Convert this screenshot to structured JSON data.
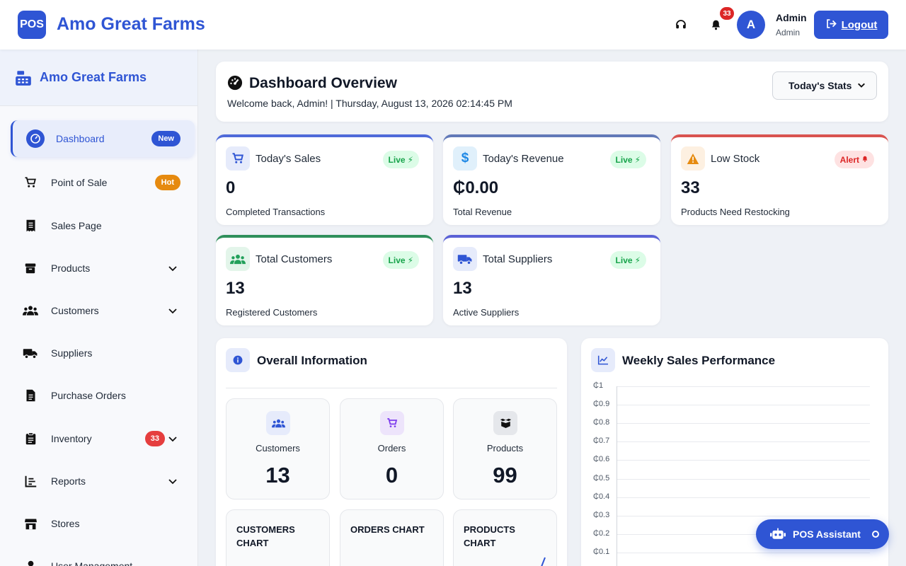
{
  "topbar": {
    "logo_text": "POS",
    "brand": "Amo Great Farms",
    "notification_count": "33",
    "avatar_initial": "A",
    "user_name": "Admin",
    "user_role": "Admin",
    "logout_label": "Logout"
  },
  "sidebar": {
    "brand": "Amo Great Farms",
    "items": [
      {
        "label": "Dashboard",
        "badge": "New",
        "icon": "dashboard-gauge-icon"
      },
      {
        "label": "Point of Sale",
        "badge": "Hot",
        "icon": "cart-icon"
      },
      {
        "label": "Sales Page",
        "icon": "receipt-icon"
      },
      {
        "label": "Products",
        "icon": "box-icon",
        "expandable": true
      },
      {
        "label": "Customers",
        "icon": "users-icon",
        "expandable": true
      },
      {
        "label": "Suppliers",
        "icon": "truck-icon"
      },
      {
        "label": "Purchase Orders",
        "icon": "document-icon"
      },
      {
        "label": "Inventory",
        "badge": "33",
        "icon": "clipboard-icon",
        "expandable": true
      },
      {
        "label": "Reports",
        "icon": "bar-chart-icon",
        "expandable": true
      },
      {
        "label": "Stores",
        "icon": "store-icon"
      },
      {
        "label": "User Management",
        "icon": "user-icon"
      }
    ]
  },
  "overview": {
    "title": "Dashboard Overview",
    "subtitle": "Welcome back, Admin! | Thursday, August 13, 2026 02:14:45 PM",
    "filter_selected": "Today's Stats"
  },
  "stats": [
    {
      "title": "Today's Sales",
      "badge": "Live",
      "value": "0",
      "sub": "Completed Transactions",
      "color": "#4f6ad9"
    },
    {
      "title": "Today's Revenue",
      "badge": "Live",
      "value": "₵0.00",
      "sub": "Total Revenue",
      "color": "#6279b8"
    },
    {
      "title": "Low Stock",
      "badge": "Alert",
      "value": "33",
      "sub": "Products Need Restocking",
      "color": "#d9534f"
    },
    {
      "title": "Total Customers",
      "badge": "Live",
      "value": "13",
      "sub": "Registered Customers",
      "color": "#2f8f5b"
    },
    {
      "title": "Total Suppliers",
      "badge": "Live",
      "value": "13",
      "sub": "Active Suppliers",
      "color": "#5b62d6"
    }
  ],
  "overall": {
    "title": "Overall Information",
    "cards": [
      {
        "label": "Customers",
        "value": "13"
      },
      {
        "label": "Orders",
        "value": "0"
      },
      {
        "label": "Products",
        "value": "99"
      }
    ],
    "charts": [
      "CUSTOMERS CHART",
      "ORDERS CHART",
      "PRODUCTS CHART"
    ]
  },
  "weekly": {
    "title": "Weekly Sales Performance"
  },
  "chart_data": {
    "type": "line",
    "title": "Weekly Sales Performance",
    "y_ticks": [
      "₵1",
      "₵0.9",
      "₵0.8",
      "₵0.7",
      "₵0.6",
      "₵0.5",
      "₵0.4",
      "₵0.3",
      "₵0.2",
      "₵0.1"
    ],
    "ylim": [
      0,
      1
    ],
    "series": [],
    "grid": true
  },
  "assistant": {
    "label": "POS Assistant"
  },
  "colors": {
    "accent": "#2f55d4",
    "live": "#16a34a",
    "alert": "#dc2626",
    "hot": "#e68a0f"
  }
}
